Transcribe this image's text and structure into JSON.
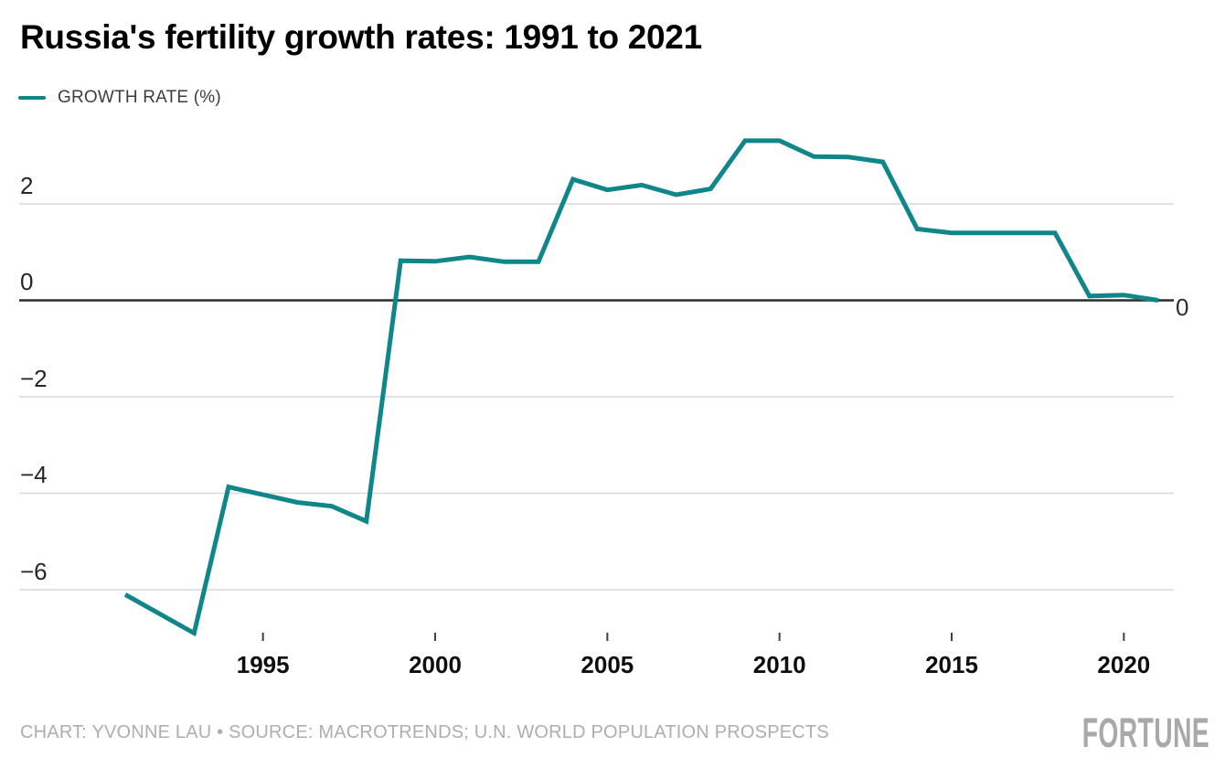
{
  "header": {
    "title": "Russia's fertility growth rates: 1991 to 2021"
  },
  "legend": {
    "label": "GROWTH RATE (%)",
    "swatch_color": "#0e868a"
  },
  "chart_data": {
    "type": "line",
    "title": "Russia's fertility growth rates: 1991 to 2021",
    "xlabel": "",
    "ylabel": "GROWTH RATE (%)",
    "xlim": [
      1991,
      2021
    ],
    "ylim": [
      -7.3,
      3.6
    ],
    "grid": "horizontal",
    "legend_position": "top-left",
    "series": [
      {
        "name": "GROWTH RATE (%)",
        "color": "#0e868a",
        "x": [
          1991,
          1992,
          1993,
          1994,
          1995,
          1996,
          1997,
          1998,
          1999,
          2000,
          2001,
          2002,
          2003,
          2004,
          2005,
          2006,
          2007,
          2008,
          2009,
          2010,
          2011,
          2012,
          2013,
          2014,
          2015,
          2016,
          2017,
          2018,
          2019,
          2020,
          2021
        ],
        "values": [
          -6.1,
          -6.5,
          -6.9,
          -3.87,
          -4.03,
          -4.19,
          -4.27,
          -4.58,
          0.82,
          0.81,
          0.9,
          0.8,
          0.8,
          2.51,
          2.29,
          2.39,
          2.19,
          2.31,
          3.31,
          3.31,
          2.98,
          2.97,
          2.87,
          1.48,
          1.4,
          1.4,
          1.4,
          1.4,
          0.09,
          0.11,
          0
        ]
      }
    ],
    "x_ticks": [
      {
        "x": 1995,
        "label": "1995"
      },
      {
        "x": 2000,
        "label": "2000"
      },
      {
        "x": 2005,
        "label": "2005"
      },
      {
        "x": 2010,
        "label": "2010"
      },
      {
        "x": 2015,
        "label": "2015"
      },
      {
        "x": 2020,
        "label": "2020"
      }
    ],
    "y_ticks": [
      {
        "y": 2,
        "label": "2"
      },
      {
        "y": 0,
        "label": "0"
      },
      {
        "y": -2,
        "label": "−2"
      },
      {
        "y": -4,
        "label": "−4"
      },
      {
        "y": -6,
        "label": "−6"
      }
    ],
    "zero_baseline": true,
    "end_value_label": "0",
    "colors": {
      "line": "#0e868a",
      "grid": "#d9d9d9",
      "zero_line": "#2b2b2b",
      "tick": "#3f3f3f"
    }
  },
  "footer": {
    "credit": "CHART: YVONNE LAU • SOURCE: MACROTRENDS; U.N. WORLD POPULATION PROSPECTS",
    "brand": "FORTUNE"
  }
}
